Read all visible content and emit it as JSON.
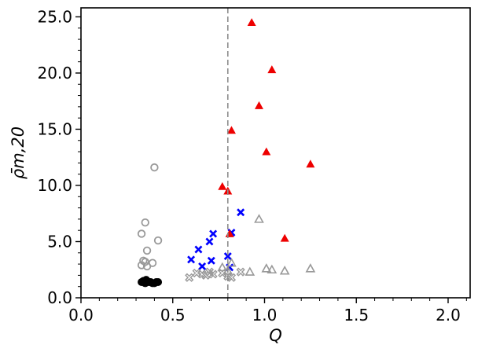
{
  "chart_data": {
    "type": "scatter",
    "title": "",
    "xlabel": "Q",
    "ylabel": "ρ̄m,20",
    "xlim": [
      0.0,
      2.12
    ],
    "ylim": [
      0.0,
      25.8
    ],
    "xticks": [
      0.0,
      0.5,
      1.0,
      1.5,
      2.0
    ],
    "xtick_labels": [
      "0.0",
      "0.5",
      "1.0",
      "1.5",
      "2.0"
    ],
    "yticks": [
      0.0,
      5.0,
      10.0,
      15.0,
      20.0,
      25.0
    ],
    "ytick_labels": [
      "0.0",
      "5.0",
      "10.0",
      "15.0",
      "20.0",
      "25.0"
    ],
    "grid": false,
    "legend": "none",
    "vline": {
      "x": 0.8,
      "color": "#8c8c8c",
      "style": "dashed"
    },
    "series": [
      {
        "marker": "circle-filled",
        "color": "#000000",
        "points": [
          [
            0.33,
            1.4
          ],
          [
            0.34,
            1.5
          ],
          [
            0.35,
            1.3
          ],
          [
            0.36,
            1.5
          ],
          [
            0.37,
            1.4
          ],
          [
            0.38,
            1.4
          ],
          [
            0.39,
            1.3
          ],
          [
            0.4,
            1.3
          ],
          [
            0.41,
            1.4
          ],
          [
            0.42,
            1.4
          ],
          [
            0.345,
            1.4
          ],
          [
            0.355,
            1.6
          ]
        ]
      },
      {
        "marker": "circle-open",
        "color": "#999999",
        "points": [
          [
            0.4,
            11.6
          ],
          [
            0.35,
            6.7
          ],
          [
            0.33,
            5.7
          ],
          [
            0.42,
            5.1
          ],
          [
            0.36,
            4.2
          ],
          [
            0.34,
            3.3
          ],
          [
            0.35,
            3.2
          ],
          [
            0.39,
            3.1
          ],
          [
            0.33,
            2.9
          ],
          [
            0.36,
            2.8
          ]
        ]
      },
      {
        "marker": "x-filled",
        "color": "#0000ff",
        "points": [
          [
            0.87,
            7.6
          ],
          [
            0.72,
            5.7
          ],
          [
            0.82,
            5.8
          ],
          [
            0.7,
            5.0
          ],
          [
            0.64,
            4.3
          ],
          [
            0.6,
            3.4
          ],
          [
            0.8,
            3.7
          ],
          [
            0.71,
            3.3
          ],
          [
            0.66,
            2.8
          ],
          [
            0.81,
            2.7
          ]
        ]
      },
      {
        "marker": "x-open",
        "color": "#999999",
        "points": [
          [
            0.59,
            1.8
          ],
          [
            0.63,
            2.2
          ],
          [
            0.66,
            2.1
          ],
          [
            0.68,
            2.0
          ],
          [
            0.7,
            2.3
          ],
          [
            0.72,
            2.1
          ],
          [
            0.77,
            2.2
          ],
          [
            0.8,
            1.9
          ],
          [
            0.82,
            1.8
          ],
          [
            0.87,
            2.3
          ]
        ]
      },
      {
        "marker": "triangle-filled",
        "color": "#ee0000",
        "points": [
          [
            0.93,
            24.5
          ],
          [
            1.04,
            20.3
          ],
          [
            0.97,
            17.1
          ],
          [
            0.82,
            14.9
          ],
          [
            1.01,
            13.0
          ],
          [
            1.25,
            11.9
          ],
          [
            0.77,
            9.9
          ],
          [
            0.8,
            9.5
          ],
          [
            0.81,
            5.7
          ],
          [
            1.11,
            5.3
          ]
        ]
      },
      {
        "marker": "triangle-open",
        "color": "#999999",
        "points": [
          [
            0.97,
            7.0
          ],
          [
            0.77,
            2.7
          ],
          [
            0.82,
            3.1
          ],
          [
            0.8,
            2.4
          ],
          [
            0.92,
            2.3
          ],
          [
            1.01,
            2.6
          ],
          [
            1.04,
            2.5
          ],
          [
            1.11,
            2.4
          ],
          [
            1.25,
            2.6
          ]
        ]
      }
    ]
  }
}
